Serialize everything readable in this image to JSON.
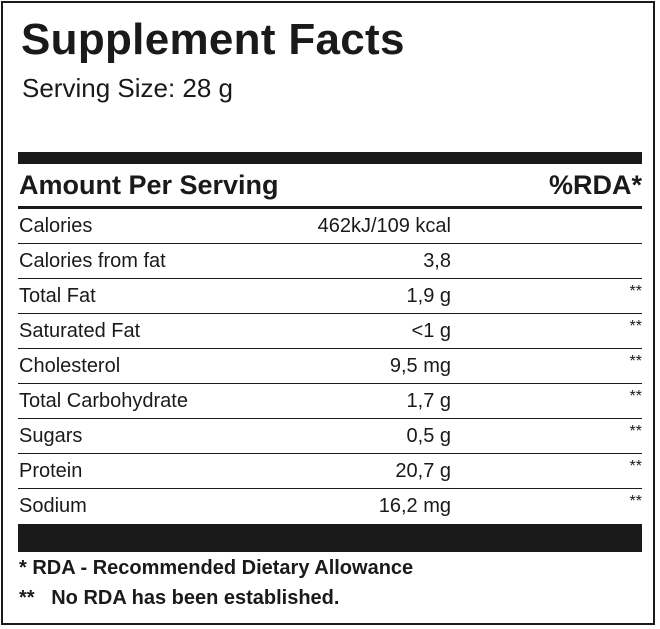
{
  "title": "Supplement Facts",
  "serving_size": "Serving Size: 28 g",
  "table_header": {
    "amount_label": "Amount Per Serving",
    "rda_label": "%RDA*"
  },
  "rows": [
    {
      "label": "Calories",
      "amount": "462kJ/109 kcal",
      "rda": ""
    },
    {
      "label": "Calories from fat",
      "amount": "3,8",
      "rda": ""
    },
    {
      "label": "Total Fat",
      "amount": "1,9 g",
      "rda": "**"
    },
    {
      "label": "Saturated Fat",
      "amount": "<1 g",
      "rda": "**"
    },
    {
      "label": "Cholesterol",
      "amount": "9,5 mg",
      "rda": "**"
    },
    {
      "label": "Total Carbohydrate",
      "amount": "1,7 g",
      "rda": "**"
    },
    {
      "label": "Sugars",
      "amount": "0,5 g",
      "rda": "**"
    },
    {
      "label": "Protein",
      "amount": "20,7 g",
      "rda": "**"
    },
    {
      "label": "Sodium",
      "amount": "16,2 mg",
      "rda": "**"
    }
  ],
  "footnotes": {
    "rda_definition": "* RDA - Recommended Dietary Allowance",
    "no_rda": "**   No RDA has been established."
  }
}
